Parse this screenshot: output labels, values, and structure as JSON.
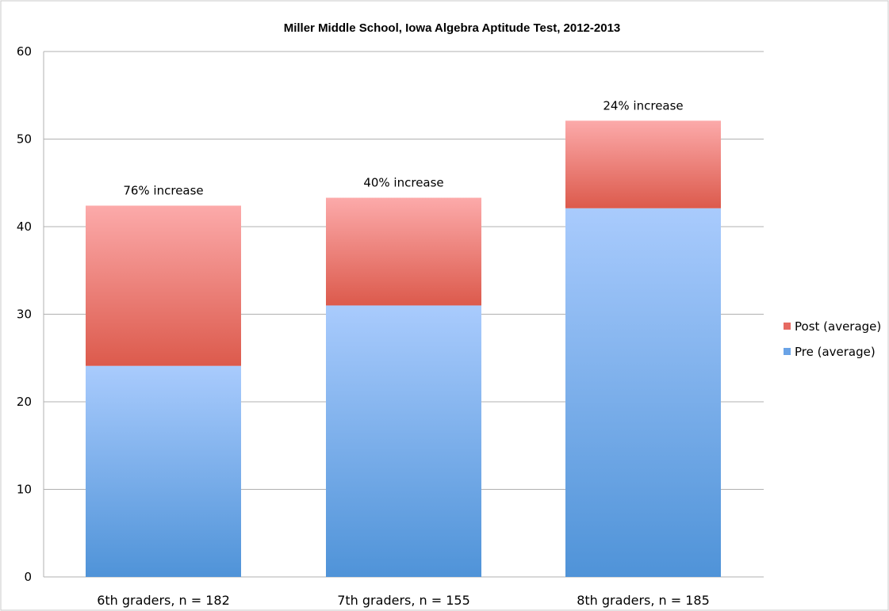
{
  "chart_data": {
    "type": "bar",
    "stacked": true,
    "title": "Miller Middle School, Iowa Algebra Aptitude Test, 2012-2013",
    "categories": [
      "6th graders, n = 182",
      "7th graders, n = 155",
      "8th graders, n = 185"
    ],
    "series": [
      {
        "name": "Pre (average)",
        "values": [
          24.1,
          31,
          42.1
        ],
        "color_top": "#a9cbfd",
        "color_bottom": "#4f93d8"
      },
      {
        "name": "Post (average)",
        "values": [
          18.3,
          12.3,
          10
        ],
        "color_top": "#fcaaaa",
        "color_bottom": "#dc5a4c"
      }
    ],
    "bar_labels": [
      "76% increase",
      "40% increase",
      "24% increase"
    ],
    "legend": [
      {
        "label": "Post (average)",
        "color": "#e66a62"
      },
      {
        "label": "Pre (average)",
        "color": "#6aa3e6"
      }
    ],
    "ylim": [
      0,
      60
    ],
    "yticks": [
      "0",
      "10",
      "20",
      "30",
      "40",
      "50",
      "60"
    ],
    "xlabel": "",
    "ylabel": "",
    "grid": true,
    "legend_position": "right"
  }
}
